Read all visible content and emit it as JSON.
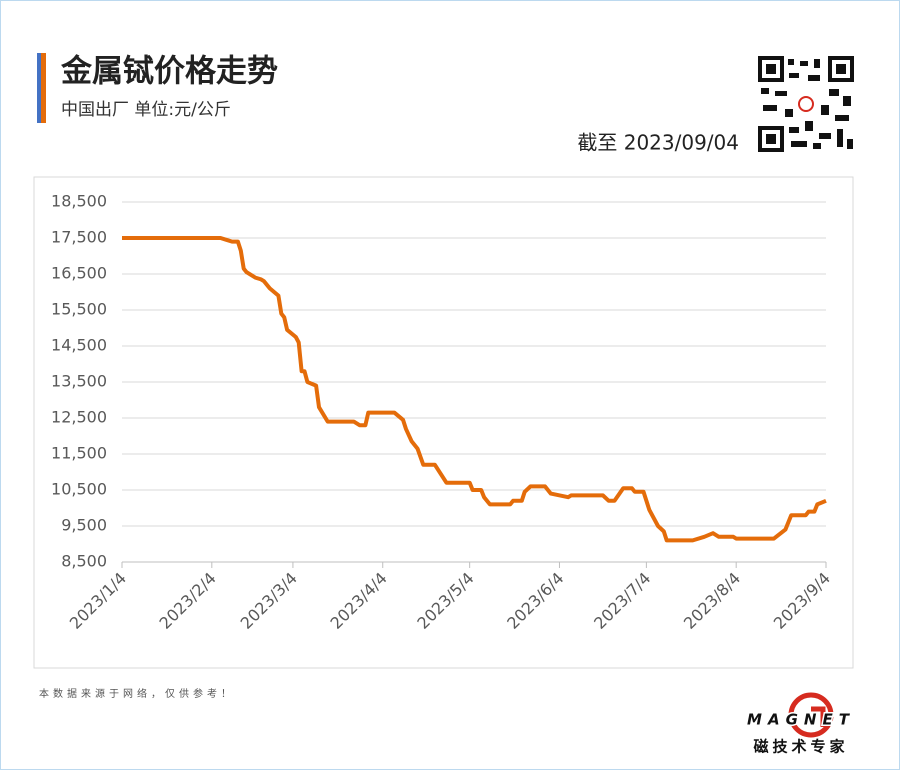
{
  "chart_data": {
    "type": "line",
    "title": "金属铽价格走势",
    "subtitle": "中国出厂  单位:元/公斤",
    "date_note": "截至 2023/09/04",
    "source_note": "本数据来源于网络，仅供参考！",
    "brand": "MAGNET",
    "brand_slogan": "磁技术专家",
    "x": [
      "2023/1/4",
      "2023/2/7",
      "2023/2/9",
      "2023/2/11",
      "2023/2/13",
      "2023/2/14",
      "2023/2/15",
      "2023/2/16",
      "2023/2/19",
      "2023/2/21",
      "2023/2/22",
      "2023/2/24",
      "2023/2/27",
      "2023/2/28",
      "2023/3/1",
      "2023/3/2",
      "2023/3/5",
      "2023/3/6",
      "2023/3/7",
      "2023/3/8",
      "2023/3/9",
      "2023/3/12",
      "2023/3/13",
      "2023/3/16",
      "2023/3/25",
      "2023/3/27",
      "2023/3/29",
      "2023/3/30",
      "2023/4/8",
      "2023/4/11",
      "2023/4/12",
      "2023/4/14",
      "2023/4/16",
      "2023/4/18",
      "2023/4/22",
      "2023/4/24",
      "2023/4/26",
      "2023/5/4",
      "2023/5/5",
      "2023/5/8",
      "2023/5/9",
      "2023/5/11",
      "2023/5/18",
      "2023/5/19",
      "2023/5/22",
      "2023/5/23",
      "2023/5/25",
      "2023/5/30",
      "2023/6/1",
      "2023/6/7",
      "2023/6/8",
      "2023/6/19",
      "2023/6/21",
      "2023/6/23",
      "2023/6/26",
      "2023/6/29",
      "2023/6/30",
      "2023/7/3",
      "2023/7/5",
      "2023/7/8",
      "2023/7/10",
      "2023/7/11",
      "2023/7/20",
      "2023/7/24",
      "2023/7/27",
      "2023/7/29",
      "2023/8/3",
      "2023/8/4",
      "2023/8/17",
      "2023/8/21",
      "2023/8/23",
      "2023/8/28",
      "2023/8/29",
      "2023/8/31",
      "2023/9/1",
      "2023/9/4"
    ],
    "series": [
      {
        "name": "金属铽",
        "color": "#e46c0a",
        "values": [
          17500,
          17500,
          17450,
          17400,
          17400,
          17150,
          16650,
          16550,
          16400,
          16350,
          16300,
          16100,
          15900,
          15400,
          15300,
          14950,
          14750,
          14600,
          13800,
          13800,
          13500,
          13400,
          12800,
          12400,
          12400,
          12300,
          12300,
          12650,
          12650,
          12450,
          12200,
          11850,
          11650,
          11200,
          11200,
          10950,
          10700,
          10700,
          10500,
          10500,
          10300,
          10100,
          10100,
          10200,
          10200,
          10450,
          10600,
          10600,
          10400,
          10300,
          10350,
          10350,
          10200,
          10200,
          10550,
          10550,
          10450,
          10450,
          9950,
          9500,
          9350,
          9100,
          9100,
          9200,
          9300,
          9200,
          9200,
          9150,
          9150,
          9400,
          9800,
          9800,
          9900,
          9900,
          10100,
          10200
        ]
      }
    ],
    "xlim": [
      "2023/1/4",
      "2023/9/4"
    ],
    "xticks": [
      "2023/1/4",
      "2023/2/4",
      "2023/3/4",
      "2023/4/4",
      "2023/5/4",
      "2023/6/4",
      "2023/7/4",
      "2023/8/4",
      "2023/9/4"
    ],
    "ylim": [
      8500,
      18500
    ],
    "yticks": [
      {
        "value": 8500,
        "label": "8,500"
      },
      {
        "value": 9500,
        "label": "9,500"
      },
      {
        "value": 10500,
        "label": "10,500"
      },
      {
        "value": 11500,
        "label": "11,500"
      },
      {
        "value": 12500,
        "label": "12,500"
      },
      {
        "value": 13500,
        "label": "13,500"
      },
      {
        "value": 14500,
        "label": "14,500"
      },
      {
        "value": 15500,
        "label": "15,500"
      },
      {
        "value": 16500,
        "label": "16,500"
      },
      {
        "value": 17500,
        "label": "17,500"
      },
      {
        "value": 18500,
        "label": "18,500"
      }
    ],
    "grid": true
  }
}
